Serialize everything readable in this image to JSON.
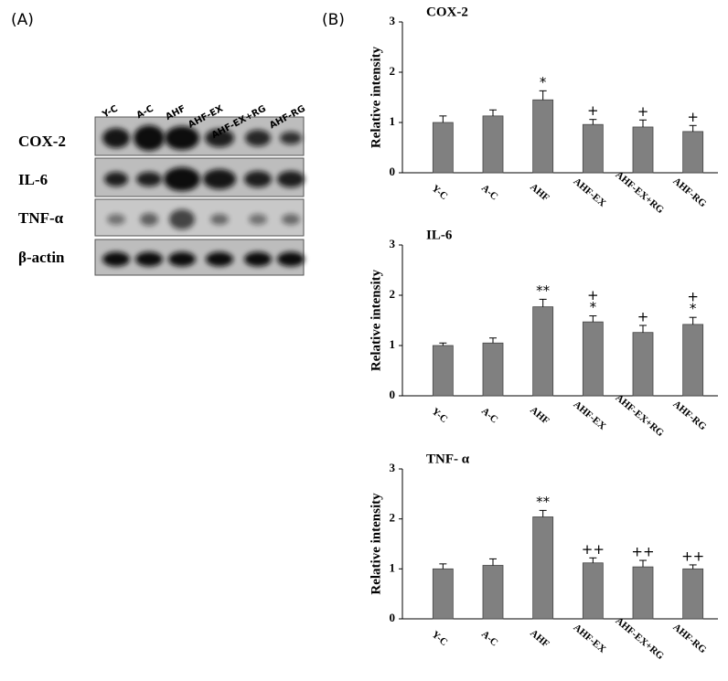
{
  "panel_a": {
    "label": "(A)",
    "lanes": [
      "Y-C",
      "A-C",
      "AHF",
      "AHF-EX",
      "AHF-EX+RG",
      "AHF-RG"
    ],
    "rows": [
      "COX-2",
      "IL-6",
      "TNF-α",
      "β-actin"
    ]
  },
  "panel_b": {
    "label": "(B)"
  },
  "chart_data": [
    {
      "type": "bar",
      "title": "COX-2",
      "y_label": "Relative intensity",
      "color": "#808080",
      "categories": [
        "Y-C",
        "A-C",
        "AHF",
        "AHF-EX",
        "AHF-EX+RG",
        "AHF-RG"
      ],
      "values": [
        1.0,
        1.13,
        1.45,
        0.96,
        0.91,
        0.82
      ],
      "errors": [
        0.13,
        0.12,
        0.18,
        0.1,
        0.14,
        0.12
      ],
      "annotations": [
        null,
        null,
        [
          "*"
        ],
        [
          "+"
        ],
        [
          "+"
        ],
        [
          "+"
        ]
      ],
      "ylim": [
        0,
        3
      ],
      "yticks": [
        0,
        1,
        2,
        3
      ]
    },
    {
      "type": "bar",
      "title": "IL-6",
      "y_label": "Relative intensity",
      "color": "#808080",
      "categories": [
        "Y-C",
        "A-C",
        "AHF",
        "AHF-EX",
        "AHF-EX+RG",
        "AHF-RG"
      ],
      "values": [
        1.0,
        1.05,
        1.77,
        1.47,
        1.26,
        1.42
      ],
      "errors": [
        0.05,
        0.1,
        0.15,
        0.12,
        0.14,
        0.14
      ],
      "annotations": [
        null,
        null,
        [
          "**"
        ],
        [
          "+",
          "*"
        ],
        [
          "+"
        ],
        [
          "+",
          "*"
        ]
      ],
      "ylim": [
        0,
        3
      ],
      "yticks": [
        0,
        1,
        2,
        3
      ]
    },
    {
      "type": "bar",
      "title": "TNF- α",
      "y_label": "Relative intensity",
      "color": "#808080",
      "categories": [
        "Y-C",
        "A-C",
        "AHF",
        "AHF-EX",
        "AHF-EX+RG",
        "AHF-RG"
      ],
      "values": [
        1.0,
        1.07,
        2.04,
        1.12,
        1.04,
        1.0
      ],
      "errors": [
        0.1,
        0.13,
        0.13,
        0.1,
        0.13,
        0.08
      ],
      "annotations": [
        null,
        null,
        [
          "**"
        ],
        [
          "++"
        ],
        [
          "++"
        ],
        [
          "++"
        ]
      ],
      "ylim": [
        0,
        3
      ],
      "yticks": [
        0,
        1,
        2,
        3
      ]
    }
  ]
}
